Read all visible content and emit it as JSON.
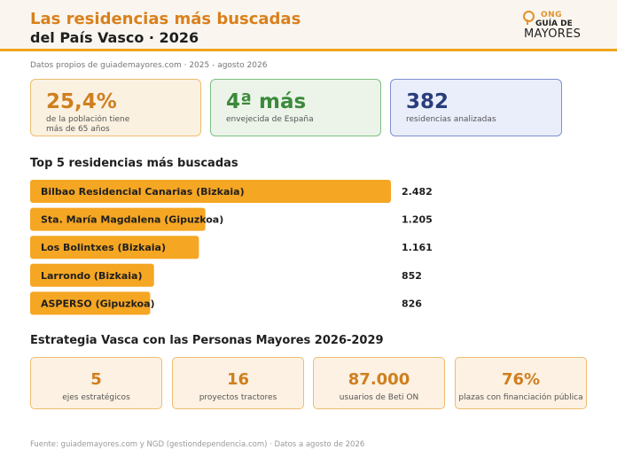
{
  "header": {
    "title_line1": "Las residencias más buscadas",
    "title_line2": "del País Vasco · 2026",
    "logo_ong": "ONG",
    "logo_guia": "GUÍA DE",
    "logo_mayores": "MAYORES"
  },
  "subtitle": "Datos propios de guiademayores.com · 2025 - agosto 2026",
  "kpis": [
    {
      "value": "25,4%",
      "label_line1": "de la población tiene",
      "label_line2": "más de 65 años"
    },
    {
      "value": "4ª más",
      "label_line1": "envejecida de España",
      "label_line2": ""
    },
    {
      "value": "382",
      "label_line1": "residencias analizadas",
      "label_line2": ""
    }
  ],
  "top5_title": "Top 5 residencias más buscadas",
  "chart_data": {
    "type": "bar",
    "orientation": "horizontal",
    "title": "Top 5 residencias más buscadas",
    "categories": [
      "Bilbao Residencial Canarias (Bizkaia)",
      "Sta. María Magdalena (Gipuzkoa)",
      "Los Bolintxes (Bizkaia)",
      "Larrondo (Bizkaia)",
      "ASPERSO (Gipuzkoa)"
    ],
    "values": [
      2482,
      1205,
      1161,
      852,
      826
    ],
    "value_labels": [
      "2.482",
      "1.205",
      "1.161",
      "852",
      "826"
    ],
    "bar_color": "#f5a623",
    "xlim": [
      0,
      2482
    ]
  },
  "strategy_title": "Estrategia Vasca con las Personas Mayores 2026-2029",
  "strategy": [
    {
      "value": "5",
      "label": "ejes estratégicos"
    },
    {
      "value": "16",
      "label": "proyectos tractores"
    },
    {
      "value": "87.000",
      "label": "usuarios de Beti ON"
    },
    {
      "value": "76%",
      "label": "plazas con financiación pública"
    }
  ],
  "footer": "Fuente: guiademayores.com y NGD (gestiondependencia.com) · Datos a agosto de 2026",
  "colors": {
    "accent": "#f5a623",
    "title_orange": "#d9801c"
  }
}
